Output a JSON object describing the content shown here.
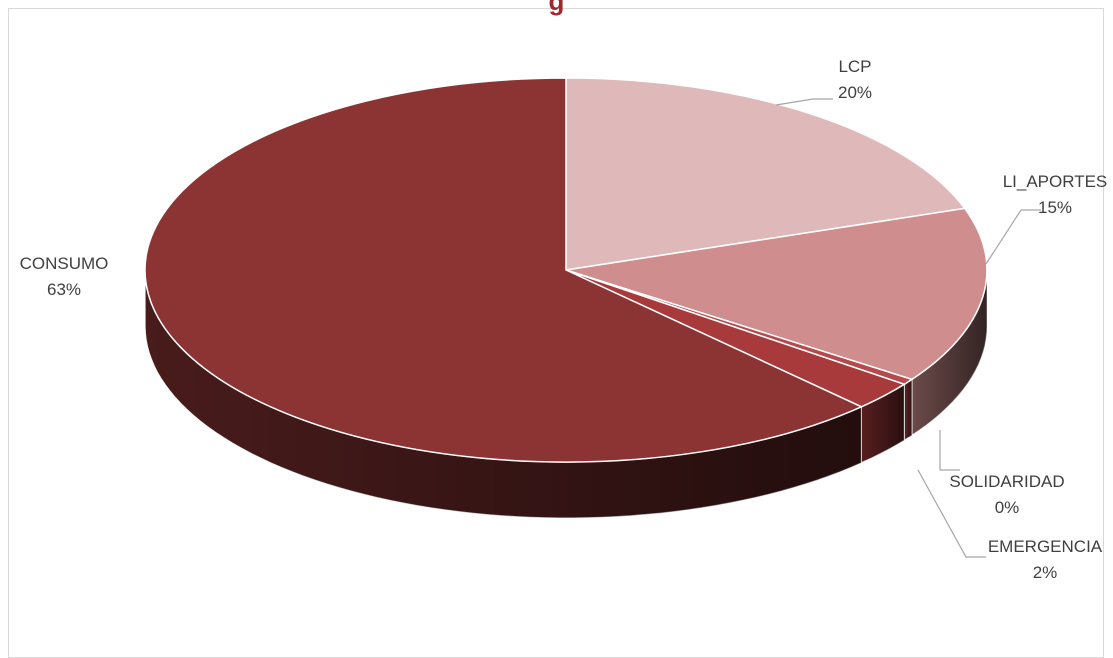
{
  "chart_data": {
    "type": "pie",
    "title": "g",
    "style": "3d-exploded-depth",
    "start_angle_deg": 0,
    "direction": "clockwise",
    "slices": [
      {
        "label": "LCP",
        "percent_label": "20%",
        "value": 20,
        "color": "#dfb9ba"
      },
      {
        "label": "LI_APORTES",
        "percent_label": "15%",
        "value": 15,
        "color": "#cf8d8e"
      },
      {
        "label": "SOLIDARIDAD",
        "percent_label": "0%",
        "value": 0.5,
        "color": "#b5494b"
      },
      {
        "label": "EMERGENCIA",
        "percent_label": "2%",
        "value": 2.5,
        "color": "#a83a3c"
      },
      {
        "label": "CONSUMO",
        "percent_label": "63%",
        "value": 63,
        "color": "#8c3434"
      }
    ]
  }
}
